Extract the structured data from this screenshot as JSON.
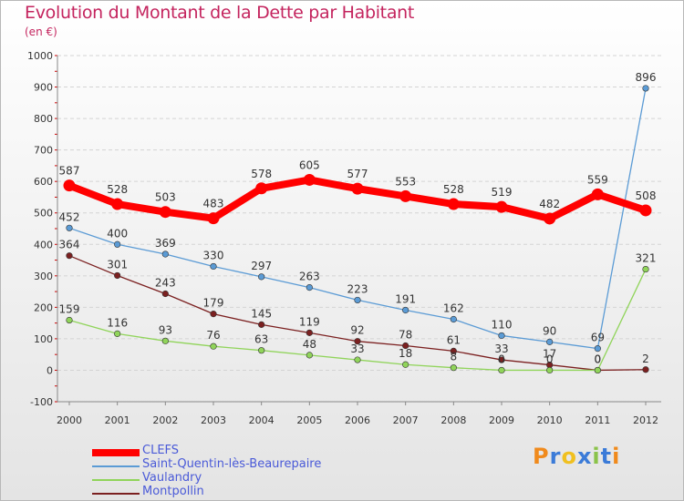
{
  "chart_data": {
    "type": "line",
    "title": "Evolution du Montant de la Dette par Habitant",
    "subtitle": "(en €)",
    "xlabel": "",
    "ylabel": "",
    "ylim": [
      -100,
      1000
    ],
    "y_ticks": [
      -100,
      0,
      100,
      200,
      300,
      400,
      500,
      600,
      700,
      800,
      900,
      1000
    ],
    "x": [
      2000,
      2001,
      2002,
      2003,
      2004,
      2005,
      2006,
      2007,
      2008,
      2009,
      2010,
      2011,
      2012
    ],
    "legend_position": "bottom-left",
    "series": [
      {
        "name": "CLEFS",
        "color": "#ff0000",
        "values": [
          587,
          528,
          503,
          483,
          578,
          605,
          577,
          553,
          528,
          519,
          482,
          559,
          508
        ]
      },
      {
        "name": "Saint-Quentin-lès-Beaurepaire",
        "color": "#5b9bd5",
        "values": [
          452,
          400,
          369,
          330,
          297,
          263,
          223,
          191,
          162,
          110,
          90,
          69,
          896
        ]
      },
      {
        "name": "Vaulandry",
        "color": "#90d45a",
        "values": [
          159,
          116,
          93,
          76,
          63,
          48,
          33,
          18,
          8,
          0,
          0,
          0,
          321
        ]
      },
      {
        "name": "Montpollin",
        "color": "#7b2020",
        "values": [
          364,
          301,
          243,
          179,
          145,
          119,
          92,
          78,
          61,
          33,
          17,
          0,
          2
        ]
      }
    ]
  },
  "legend_text_color": "#4a5ad8",
  "logo": {
    "text": "Proxiti",
    "colors": [
      "#f08a1c",
      "#3b7bd8",
      "#f0c020",
      "#3b7bd8",
      "#8bc34a",
      "#3b7bd8",
      "#f08a1c"
    ]
  }
}
